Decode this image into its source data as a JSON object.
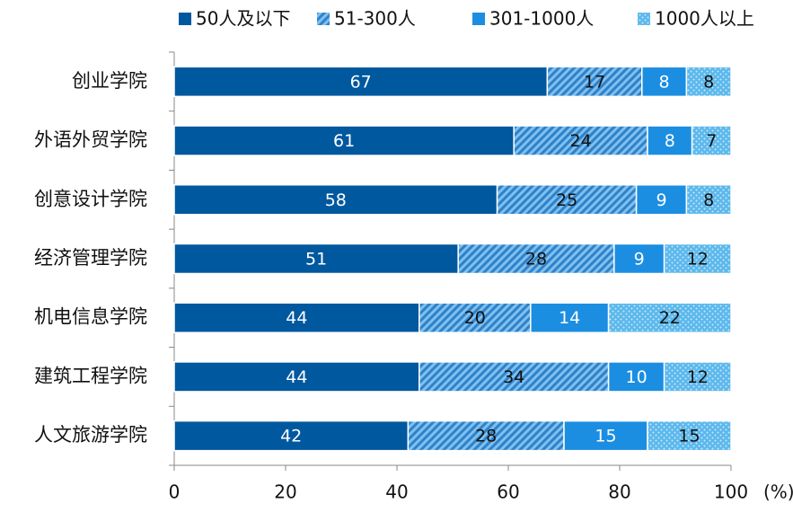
{
  "chart_data": {
    "type": "bar",
    "orientation": "horizontal",
    "stacked": true,
    "categories": [
      "创业学院",
      "外语外贸学院",
      "创意设计学院",
      "经济管理学院",
      "机电信息学院",
      "建筑工程学院",
      "人文旅游学院"
    ],
    "series": [
      {
        "name": "50人及以下",
        "values": [
          67,
          61,
          58,
          51,
          44,
          44,
          42
        ],
        "color": "#00589e",
        "pattern": "solid"
      },
      {
        "name": "51-300人",
        "values": [
          17,
          24,
          25,
          28,
          20,
          34,
          28
        ],
        "color": "#3a8fd8",
        "pattern": "diagonal-hatch"
      },
      {
        "name": "301-1000人",
        "values": [
          8,
          8,
          9,
          9,
          14,
          10,
          15
        ],
        "color": "#1b8ee1",
        "pattern": "solid"
      },
      {
        "name": "1000人以上",
        "values": [
          8,
          7,
          8,
          12,
          22,
          12,
          15
        ],
        "color": "#5bb8ec",
        "pattern": "dotted"
      }
    ],
    "xlim": [
      0,
      100
    ],
    "xticks": [
      0,
      20,
      40,
      60,
      80,
      100
    ],
    "xunit": "(%)",
    "grid": false,
    "legend": "top"
  }
}
